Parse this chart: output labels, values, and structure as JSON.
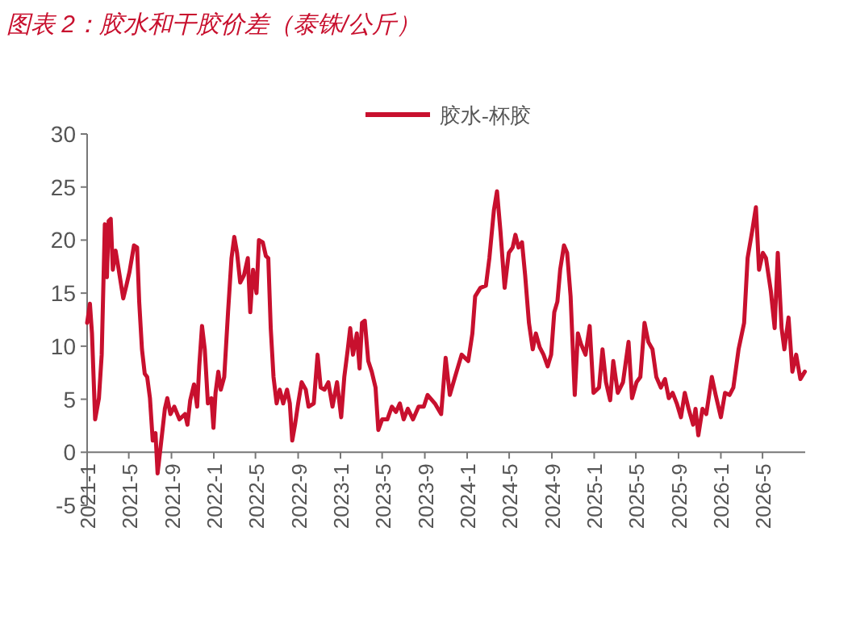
{
  "chart_data": {
    "type": "line",
    "title": "图表 2：胶水和干胶价差（泰铢/公斤）",
    "legend": "top",
    "x": [
      "2021-01-01",
      "2021-01-09",
      "2021-01-15",
      "2021-01-24",
      "2021-02-04",
      "2021-02-12",
      "2021-02-21",
      "2021-02-27",
      "2021-03-04",
      "2021-03-10",
      "2021-03-16",
      "2021-03-24",
      "2021-04-02",
      "2021-04-15",
      "2021-04-24",
      "2021-05-03",
      "2021-05-16",
      "2021-05-25",
      "2021-05-31",
      "2021-06-08",
      "2021-06-16",
      "2021-06-23",
      "2021-07-01",
      "2021-07-09",
      "2021-07-17",
      "2021-07-23",
      "2021-08-01",
      "2021-08-13",
      "2021-08-20",
      "2021-08-29",
      "2021-09-09",
      "2021-09-24",
      "2021-10-10",
      "2021-10-17",
      "2021-10-25",
      "2021-11-05",
      "2021-11-14",
      "2021-11-20",
      "2021-11-28",
      "2021-12-06",
      "2021-12-15",
      "2021-12-25",
      "2021-12-31",
      "2022-01-06",
      "2022-01-14",
      "2022-01-21",
      "2022-01-31",
      "2022-02-11",
      "2022-02-21",
      "2022-03-01",
      "2022-03-09",
      "2022-03-18",
      "2022-03-29",
      "2022-04-09",
      "2022-04-16",
      "2022-04-24",
      "2022-05-04",
      "2022-05-11",
      "2022-05-22",
      "2022-05-31",
      "2022-06-07",
      "2022-06-14",
      "2022-06-22",
      "2022-07-01",
      "2022-07-10",
      "2022-07-20",
      "2022-07-31",
      "2022-08-08",
      "2022-08-15",
      "2022-08-23",
      "2022-09-01",
      "2022-09-11",
      "2022-09-23",
      "2022-10-01",
      "2022-10-16",
      "2022-10-27",
      "2022-11-05",
      "2022-11-16",
      "2022-11-27",
      "2022-12-09",
      "2022-12-22",
      "2023-01-03",
      "2023-01-12",
      "2023-01-22",
      "2023-01-29",
      "2023-02-06",
      "2023-02-17",
      "2023-02-25",
      "2023-03-04",
      "2023-03-12",
      "2023-03-22",
      "2023-04-01",
      "2023-04-12",
      "2023-04-20",
      "2023-05-01",
      "2023-05-16",
      "2023-05-29",
      "2023-06-10",
      "2023-06-21",
      "2023-07-02",
      "2023-07-14",
      "2023-07-29",
      "2023-08-14",
      "2023-08-29",
      "2023-09-09",
      "2023-09-30",
      "2023-10-18",
      "2023-10-31",
      "2023-11-12",
      "2023-11-27",
      "2023-12-16",
      "2024-01-04",
      "2024-01-16",
      "2024-01-24",
      "2024-02-08",
      "2024-02-24",
      "2024-03-05",
      "2024-03-18",
      "2024-03-27",
      "2024-04-06",
      "2024-04-18",
      "2024-04-30",
      "2024-05-11",
      "2024-05-19",
      "2024-05-28",
      "2024-06-07",
      "2024-06-16",
      "2024-06-27",
      "2024-07-08",
      "2024-07-17",
      "2024-07-28",
      "2024-08-08",
      "2024-08-20",
      "2024-08-30",
      "2024-09-08",
      "2024-09-17",
      "2024-09-25",
      "2024-10-06",
      "2024-10-15",
      "2024-10-25",
      "2024-11-06",
      "2024-11-15",
      "2024-11-24",
      "2024-12-07",
      "2024-12-19",
      "2024-12-30",
      "2025-01-15",
      "2025-01-25",
      "2025-02-04",
      "2025-02-16",
      "2025-02-25",
      "2025-03-10",
      "2025-03-25",
      "2025-04-10",
      "2025-04-20",
      "2025-05-03",
      "2025-05-14",
      "2025-05-26",
      "2025-06-06",
      "2025-06-18",
      "2025-06-29",
      "2025-07-12",
      "2025-07-24",
      "2025-08-04",
      "2025-08-15",
      "2025-08-27",
      "2025-09-08",
      "2025-09-19",
      "2025-09-30",
      "2025-10-13",
      "2025-10-20",
      "2025-10-28",
      "2025-11-09",
      "2025-11-20",
      "2025-12-06",
      "2025-12-17",
      "2026-01-01",
      "2026-01-13",
      "2026-01-26",
      "2026-02-06",
      "2026-02-21",
      "2026-03-09",
      "2026-03-19",
      "2026-04-01",
      "2026-04-12",
      "2026-04-21",
      "2026-05-02",
      "2026-05-11",
      "2026-05-25",
      "2026-06-05",
      "2026-06-14",
      "2026-06-25",
      "2026-07-03",
      "2026-07-15",
      "2026-07-26",
      "2026-08-06",
      "2026-08-18",
      "2026-08-31"
    ],
    "series": [
      {
        "name": "胶水-杯胶",
        "color": "#c8102e",
        "values": [
          12.2,
          14,
          11.2,
          3.1,
          5.1,
          9.2,
          21.5,
          16.5,
          21.8,
          22,
          17.2,
          19,
          17.2,
          14.5,
          15.7,
          17,
          19.5,
          19.3,
          14.2,
          9.7,
          7.4,
          7.1,
          5.1,
          1.1,
          1.8,
          -2,
          0.6,
          4.1,
          5.1,
          3.6,
          4.3,
          3.1,
          3.6,
          2.6,
          4.9,
          6.4,
          4.3,
          8.1,
          11.9,
          9.7,
          4.6,
          5.1,
          2.3,
          5.6,
          7.6,
          5.9,
          7.1,
          13.2,
          18.3,
          20.3,
          18.8,
          16,
          16.7,
          18.3,
          13.2,
          17.2,
          15,
          20,
          19.8,
          18.5,
          18.3,
          11.7,
          7.1,
          4.6,
          5.9,
          4.6,
          5.9,
          4.6,
          1.1,
          2.6,
          4.6,
          6.6,
          5.9,
          4.3,
          4.6,
          9.2,
          6.1,
          5.9,
          6.6,
          4.3,
          6.6,
          3.3,
          7.1,
          9.7,
          11.7,
          9.2,
          11.2,
          7.9,
          12.2,
          12.4,
          8.6,
          7.6,
          6.1,
          2.1,
          3.1,
          3.1,
          4.3,
          3.8,
          4.6,
          3.1,
          4.1,
          3.1,
          4.3,
          4.3,
          5.4,
          4.6,
          3.6,
          8.9,
          5.4,
          7.1,
          9.2,
          8.6,
          11.2,
          14.7,
          15.5,
          15.7,
          18.3,
          22.8,
          24.6,
          20.8,
          15.5,
          18.8,
          19.3,
          20.5,
          19.3,
          19.8,
          16.7,
          12.2,
          9.7,
          11.2,
          9.9,
          9.2,
          8.1,
          9.2,
          13.2,
          14.2,
          17.2,
          19.5,
          18.8,
          14.7,
          5.4,
          11.2,
          10.2,
          9.2,
          11.9,
          5.6,
          6.1,
          9.7,
          6.6,
          4.9,
          8.6,
          5.6,
          6.6,
          10.4,
          5.1,
          6.6,
          7.1,
          12.2,
          10.4,
          9.7,
          7.1,
          6.1,
          6.9,
          5.1,
          5.6,
          4.6,
          3.3,
          5.6,
          4.1,
          2.6,
          4.1,
          1.6,
          4.1,
          3.6,
          7.1,
          5.4,
          3.3,
          5.6,
          5.4,
          6.1,
          9.7,
          12.2,
          18.3,
          20.8,
          23.1,
          17.2,
          18.8,
          18.3,
          15.2,
          11.7,
          18.8,
          11.7,
          9.7,
          12.7,
          7.6,
          9.2,
          6.9,
          7.6
        ]
      }
    ],
    "xlim": [
      "2021-01-01",
      "2026-09-01"
    ],
    "xticks": [
      {
        "value": "2021-01-01",
        "label": "2021-1"
      },
      {
        "value": "2021-05-01",
        "label": "2021-5"
      },
      {
        "value": "2021-09-01",
        "label": "2021-9"
      },
      {
        "value": "2022-01-01",
        "label": "2022-1"
      },
      {
        "value": "2022-05-01",
        "label": "2022-5"
      },
      {
        "value": "2022-09-01",
        "label": "2022-9"
      },
      {
        "value": "2023-01-01",
        "label": "2023-1"
      },
      {
        "value": "2023-05-01",
        "label": "2023-5"
      },
      {
        "value": "2023-09-01",
        "label": "2023-9"
      },
      {
        "value": "2024-01-01",
        "label": "2024-1"
      },
      {
        "value": "2024-05-01",
        "label": "2024-5"
      },
      {
        "value": "2024-09-01",
        "label": "2024-9"
      },
      {
        "value": "2025-01-01",
        "label": "2025-1"
      },
      {
        "value": "2025-05-01",
        "label": "2025-5"
      },
      {
        "value": "2025-09-01",
        "label": "2025-9"
      },
      {
        "value": "2026-01-01",
        "label": "2026-1"
      },
      {
        "value": "2026-05-01",
        "label": "2026-5"
      }
    ],
    "ylim": [
      -5,
      30
    ],
    "yticks": [
      -5,
      0,
      5,
      10,
      15,
      20,
      25,
      30
    ]
  }
}
